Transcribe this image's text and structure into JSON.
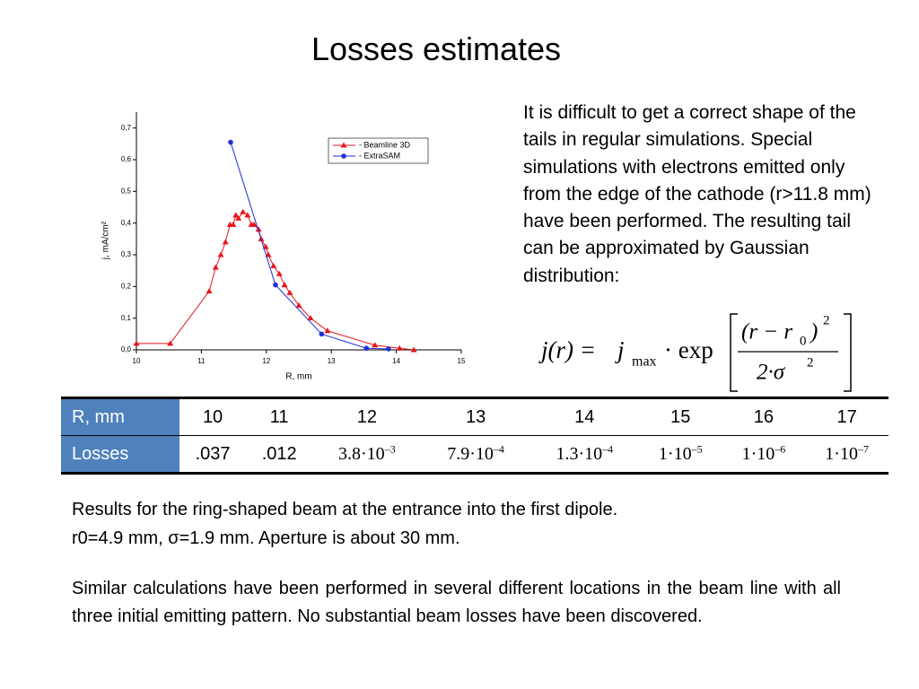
{
  "title": "Losses estimates",
  "chart_data": {
    "type": "line",
    "xlabel": "R, mm",
    "ylabel": "j, mA/cm²",
    "xlim": [
      10,
      15
    ],
    "xticks": [
      10,
      11,
      12,
      13,
      14,
      15
    ],
    "ylim": [
      0,
      0.75
    ],
    "yticks": [
      {
        "value": 0,
        "label": "0,0"
      },
      {
        "value": 0.1,
        "label": "0,1"
      },
      {
        "value": 0.2,
        "label": "0,2"
      },
      {
        "value": 0.3,
        "label": "0,3"
      },
      {
        "value": 0.4,
        "label": "0,4"
      },
      {
        "value": 0.5,
        "label": "0,5"
      },
      {
        "value": 0.6,
        "label": "0,6"
      },
      {
        "value": 0.7,
        "label": "0,7"
      }
    ],
    "legend": "upper right",
    "series": [
      {
        "name": "- Beamline 3D",
        "color": "#e8141b",
        "marker": "triangle",
        "x": [
          10,
          10.52,
          11.12,
          11.22,
          11.3,
          11.37,
          11.44,
          11.49,
          11.53,
          11.57,
          11.64,
          11.71,
          11.77,
          11.81,
          11.88,
          11.92,
          11.99,
          12.03,
          12.11,
          12.2,
          12.28,
          12.36,
          12.5,
          12.68,
          12.94,
          13.67,
          14.05,
          14.27
        ],
        "values": [
          0.02,
          0.02,
          0.185,
          0.26,
          0.3,
          0.34,
          0.395,
          0.395,
          0.425,
          0.415,
          0.435,
          0.425,
          0.395,
          0.395,
          0.38,
          0.35,
          0.325,
          0.3,
          0.265,
          0.24,
          0.205,
          0.18,
          0.14,
          0.1,
          0.06,
          0.015,
          0.005,
          0
        ]
      },
      {
        "name": "- ExtraSAM",
        "color": "#1f2fd6",
        "marker": "circle",
        "x": [
          11.45,
          12.14,
          12.85,
          13.54,
          13.88
        ],
        "values": [
          0.655,
          0.205,
          0.05,
          0.005,
          0.003
        ]
      }
    ]
  },
  "description": "It is difficult to get a correct shape of the tails in regular simulations. Special simulations with electrons emitted only from the edge of the cathode (r>11.8 mm) have been performed. The resulting tail can be approximated by Gaussian distribution:",
  "formula": {
    "lhs": "j(r) =",
    "j": "j",
    "j_sub": "max",
    "exp": "· exp",
    "num": "(r − r",
    "num_sub": "0",
    "num_close": ")",
    "num_sup": "2",
    "den": "2·σ",
    "den_sup": "2"
  },
  "table": {
    "header": [
      "R,  mm",
      "10",
      "11",
      "12",
      "13",
      "14",
      "15",
      "16",
      "17"
    ],
    "row_label": "Losses",
    "row": [
      ".037",
      ".012",
      {
        "base": "3.8·10",
        "exp": "–3"
      },
      {
        "base": "7.9·10",
        "exp": "–4"
      },
      {
        "base": "1.3·10",
        "exp": "–4"
      },
      {
        "base": "1·10",
        "exp": "–5"
      },
      {
        "base": "1·10",
        "exp": "–6"
      },
      {
        "base": "1·10",
        "exp": "–7"
      }
    ]
  },
  "notes": [
    "Results for the ring-shaped beam at the entrance into the first dipole.",
    "r0=4.9 mm, σ=1.9 mm.  Aperture is about 30 mm.",
    "Similar calculations have been performed in several different locations in the beam line with all three initial emitting pattern. No substantial beam losses have been discovered."
  ]
}
